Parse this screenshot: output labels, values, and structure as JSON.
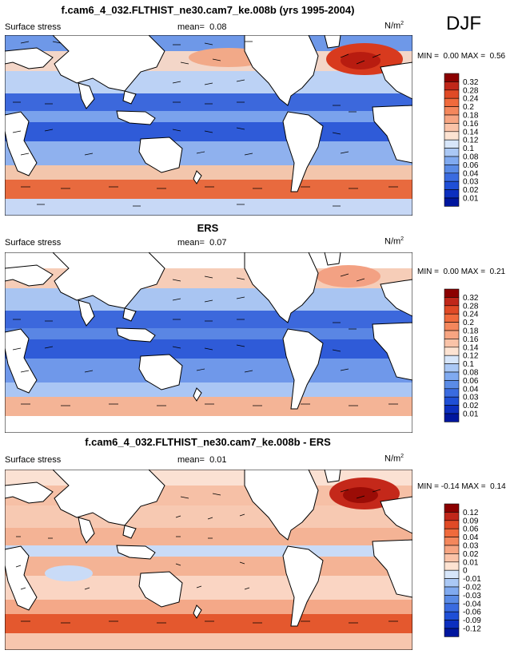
{
  "season": "DJF",
  "panels": [
    {
      "title": "f.cam6_4_032.FLTHIST_ne30.cam7_ke.008b (yrs 1995-2004)",
      "variable": "Surface stress",
      "mean_label": "mean=",
      "mean": "0.08",
      "units": "N/m",
      "units_exp": "2",
      "min_label": "MIN =",
      "min": "0.00",
      "max_label": "MAX =",
      "max": "0.56",
      "levels": [
        "0.32",
        "0.28",
        "0.24",
        "0.2",
        "0.18",
        "0.16",
        "0.14",
        "0.12",
        "0.1",
        "0.08",
        "0.06",
        "0.04",
        "0.03",
        "0.02",
        "0.01"
      ],
      "colors": [
        "#8b0000",
        "#c0271a",
        "#e04a26",
        "#f06a3c",
        "#f4875c",
        "#f7a582",
        "#fac3a8",
        "#fde3d2",
        "#d7e6fa",
        "#aac8f5",
        "#80aaf0",
        "#5a8be6",
        "#3a6be0",
        "#1f4fd6",
        "#0c2fbf",
        "#00169e"
      ]
    },
    {
      "title": "ERS",
      "variable": "Surface stress",
      "mean_label": "mean=",
      "mean": "0.07",
      "units": "N/m",
      "units_exp": "2",
      "min_label": "MIN =",
      "min": "0.00",
      "max_label": "MAX =",
      "max": "0.21",
      "levels": [
        "0.32",
        "0.28",
        "0.24",
        "0.2",
        "0.18",
        "0.16",
        "0.14",
        "0.12",
        "0.1",
        "0.08",
        "0.06",
        "0.04",
        "0.03",
        "0.02",
        "0.01"
      ],
      "colors": [
        "#8b0000",
        "#c0271a",
        "#e04a26",
        "#f06a3c",
        "#f4875c",
        "#f7a582",
        "#fac3a8",
        "#fde3d2",
        "#d7e6fa",
        "#aac8f5",
        "#80aaf0",
        "#5a8be6",
        "#3a6be0",
        "#1f4fd6",
        "#0c2fbf",
        "#00169e"
      ]
    },
    {
      "title": "f.cam6_4_032.FLTHIST_ne30.cam7_ke.008b - ERS",
      "variable": "Surface stress",
      "mean_label": "mean=",
      "mean": "0.01",
      "units": "N/m",
      "units_exp": "2",
      "min_label": "MIN =",
      "min": "-0.14",
      "max_label": "MAX =",
      "max": "0.14",
      "levels": [
        "0.12",
        "0.09",
        "0.06",
        "0.04",
        "0.03",
        "0.02",
        "0.01",
        "0",
        "-0.01",
        "-0.02",
        "-0.03",
        "-0.04",
        "-0.06",
        "-0.09",
        "-0.12"
      ],
      "colors": [
        "#8b0000",
        "#c0271a",
        "#e04a26",
        "#f06a3c",
        "#f4875c",
        "#f7a582",
        "#fac3a8",
        "#fde3d2",
        "#d7e6fa",
        "#aac8f5",
        "#80aaf0",
        "#5a8be6",
        "#3a6be0",
        "#1f4fd6",
        "#0c2fbf",
        "#00169e"
      ]
    }
  ]
}
